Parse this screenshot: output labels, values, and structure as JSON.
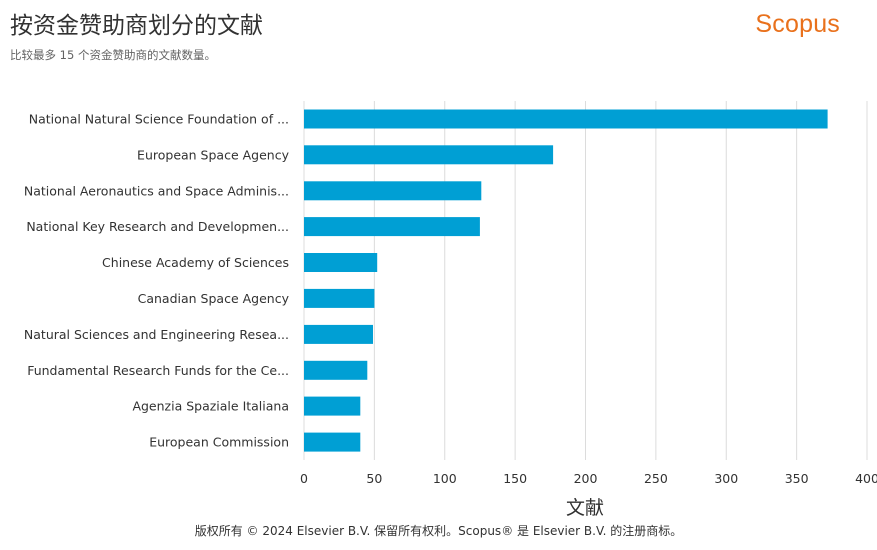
{
  "header": {
    "title": "按资金赞助商划分的文献",
    "subtitle": "比较最多 15 个资金赞助商的文献数量。",
    "brand": "Scopus"
  },
  "footer": {
    "copyright": "版权所有 © 2024 Elsevier B.V. 保留所有权利。Scopus® 是 Elsevier B.V. 的注册商标。"
  },
  "chart_data": {
    "type": "bar",
    "orientation": "horizontal",
    "title": "按资金赞助商划分的文献",
    "subtitle": "比较最多 15 个资金赞助商的文献数量。",
    "xlabel": "文献",
    "ylabel": "",
    "xlim": [
      0,
      400
    ],
    "xticks": [
      0,
      50,
      100,
      150,
      200,
      250,
      300,
      350,
      400
    ],
    "grid": "vertical",
    "legend": "none",
    "bar_color": "#009fd4",
    "categories": [
      "National Natural Science Foundation of ...",
      "European Space Agency",
      "National Aeronautics and Space Adminis...",
      "National Key Research and Developmen...",
      "Chinese Academy of Sciences",
      "Canadian Space Agency",
      "Natural Sciences and Engineering Resea...",
      "Fundamental Research Funds for the Ce...",
      "Agenzia Spaziale Italiana",
      "European Commission"
    ],
    "values": [
      372,
      177,
      126,
      125,
      52,
      50,
      49,
      45,
      40,
      40
    ]
  }
}
